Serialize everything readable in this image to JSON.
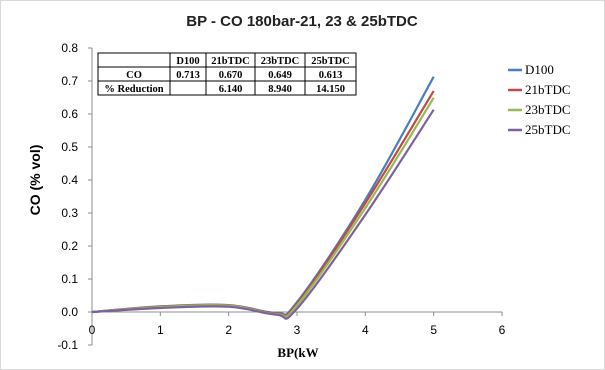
{
  "chart_data": {
    "type": "line",
    "title": "BP - CO 180bar-21, 23 & 25bTDC",
    "xlabel": "BP(kW",
    "ylabel": "CO (% vol)",
    "xlim": [
      0,
      6
    ],
    "ylim": [
      -0.1,
      0.8
    ],
    "x_ticks": [
      "0",
      "1",
      "2",
      "3",
      "4",
      "5",
      "6"
    ],
    "y_ticks": [
      "-0.1",
      "0.0",
      "0.1",
      "0.2",
      "0.3",
      "0.4",
      "0.5",
      "0.6",
      "0.7",
      "0.8"
    ],
    "legend_position": "right",
    "grid": false,
    "x": [
      0,
      1,
      2,
      2.7,
      3,
      4,
      5
    ],
    "series": [
      {
        "name": "D100",
        "color": "#4a7ebb",
        "values": [
          0.0,
          0.017,
          0.021,
          -0.002,
          0.03,
          0.34,
          0.713
        ]
      },
      {
        "name": "21bTDC",
        "color": "#be4b48",
        "values": [
          0.0,
          0.016,
          0.02,
          -0.004,
          0.025,
          0.33,
          0.67
        ]
      },
      {
        "name": "23bTDC",
        "color": "#98b954",
        "values": [
          0.0,
          0.015,
          0.019,
          -0.006,
          0.02,
          0.315,
          0.649
        ]
      },
      {
        "name": "25bTDC",
        "color": "#7d60a0",
        "values": [
          0.0,
          0.012,
          0.016,
          -0.008,
          0.01,
          0.295,
          0.613
        ]
      }
    ],
    "table": {
      "headers": [
        "",
        "D100",
        "21bTDC",
        "23bTDC",
        "25bTDC"
      ],
      "rows": [
        [
          "CO",
          "0.713",
          "0.670",
          "0.649",
          "0.613"
        ],
        [
          "% Reduction",
          "",
          "6.140",
          "8.940",
          "14.150"
        ]
      ]
    }
  }
}
